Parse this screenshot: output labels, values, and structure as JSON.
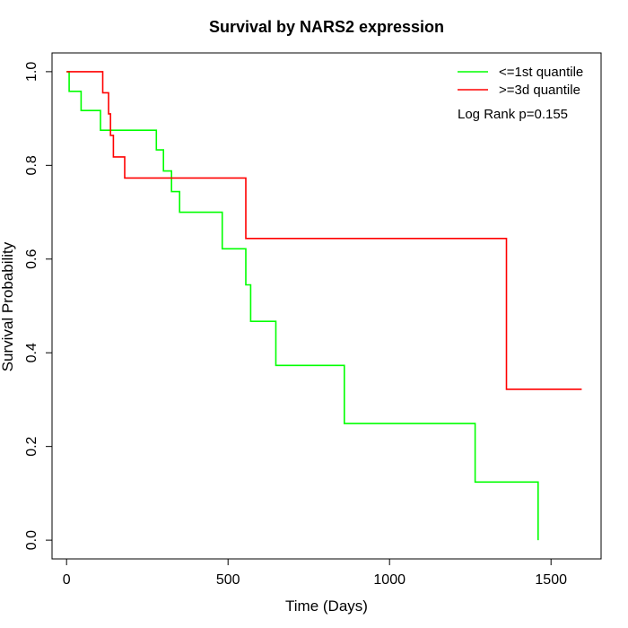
{
  "chart_data": {
    "type": "line",
    "title": "Survival by NARS2 expression",
    "xlabel": "Time (Days)",
    "ylabel": "Survival Probability",
    "xlim": [
      -45,
      1655
    ],
    "ylim": [
      -0.04,
      1.04
    ],
    "x_ticks": [
      0,
      500,
      1000,
      1500
    ],
    "x_tick_labels": [
      "0",
      "500",
      "1000",
      "1500"
    ],
    "y_ticks": [
      0.0,
      0.2,
      0.4,
      0.6,
      0.8,
      1.0
    ],
    "y_tick_labels": [
      "0.0",
      "0.2",
      "0.4",
      "0.6",
      "0.8",
      "1.0"
    ],
    "grid": false,
    "legend_position": "top-right",
    "annotation": "Log Rank p=0.155",
    "series": [
      {
        "name": "<=1st quantile",
        "color": "#00ff00",
        "step_points": [
          [
            0,
            1.0
          ],
          [
            8,
            0.958
          ],
          [
            45,
            0.917
          ],
          [
            105,
            0.875
          ],
          [
            278,
            0.833
          ],
          [
            300,
            0.788
          ],
          [
            325,
            0.744
          ],
          [
            350,
            0.7
          ],
          [
            482,
            0.622
          ],
          [
            555,
            0.545
          ],
          [
            570,
            0.467
          ],
          [
            648,
            0.373
          ],
          [
            860,
            0.249
          ],
          [
            1265,
            0.124
          ],
          [
            1460,
            0.0
          ]
        ]
      },
      {
        "name": ">=3d quantile",
        "color": "#ff0000",
        "step_points": [
          [
            0,
            1.0
          ],
          [
            112,
            0.955
          ],
          [
            130,
            0.91
          ],
          [
            136,
            0.864
          ],
          [
            145,
            0.818
          ],
          [
            180,
            0.773
          ],
          [
            555,
            0.644
          ],
          [
            1362,
            0.322
          ],
          [
            1595,
            0.322
          ]
        ]
      }
    ]
  }
}
